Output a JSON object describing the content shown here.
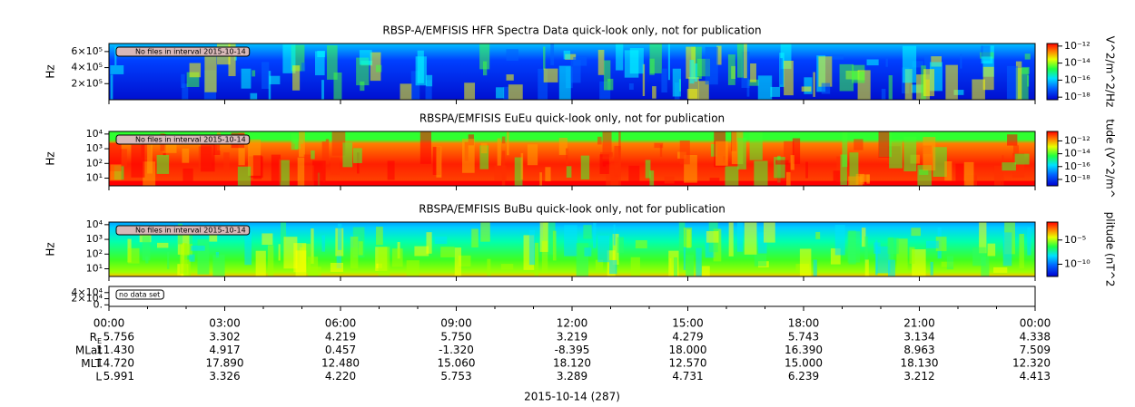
{
  "chart_data": [
    {
      "type": "spectrogram",
      "title": "RBSP-A/EMFISIS  HFR Spectra Data quick-look only, not for publication",
      "ylabel": "Hz",
      "ylim": [
        0,
        700000
      ],
      "yticks": [
        {
          "value": 600000,
          "label": "6×10⁵"
        },
        {
          "value": 400000,
          "label": "4×10⁵"
        },
        {
          "value": 200000,
          "label": "2×10⁵"
        }
      ],
      "annotation": "No files in interval 2015-10-14",
      "colorbar": {
        "label": "V^2/m^2/Hz",
        "clim": [
          5e-19,
          2e-12
        ],
        "log": true,
        "ticks": [
          {
            "value": 1e-12,
            "label": "10⁻¹²"
          },
          {
            "value": 1e-14,
            "label": "10⁻¹⁴"
          },
          {
            "value": 1e-16,
            "label": "10⁻¹⁶"
          },
          {
            "value": 1e-18,
            "label": "10⁻¹⁸"
          }
        ]
      }
    },
    {
      "type": "spectrogram",
      "title": "RBSPA/EMFISIS  EuEu quick-look only, not for publication",
      "ylabel": "Hz",
      "ylim": [
        3,
        15000
      ],
      "log_y": true,
      "yticks": [
        {
          "value": 10000,
          "label": "10⁴"
        },
        {
          "value": 1000,
          "label": "10³"
        },
        {
          "value": 100,
          "label": "10²"
        },
        {
          "value": 10,
          "label": "10¹"
        }
      ],
      "annotation": "No files in interval 2015-10-14",
      "colorbar": {
        "label": "tude (V^2/m^",
        "clim": [
          1e-19,
          3e-11
        ],
        "log": true,
        "ticks": [
          {
            "value": 1e-12,
            "label": "10⁻¹²"
          },
          {
            "value": 1e-14,
            "label": "10⁻¹⁴"
          },
          {
            "value": 1e-16,
            "label": "10⁻¹⁶"
          },
          {
            "value": 1e-18,
            "label": "10⁻¹⁸"
          }
        ]
      }
    },
    {
      "type": "spectrogram",
      "title": "RBSPA/EMFISIS  BuBu quick-look only, not for publication",
      "ylabel": "Hz",
      "ylim": [
        3,
        15000
      ],
      "log_y": true,
      "yticks": [
        {
          "value": 10000,
          "label": "10⁴"
        },
        {
          "value": 1000,
          "label": "10³"
        },
        {
          "value": 100,
          "label": "10²"
        },
        {
          "value": 10,
          "label": "10¹"
        }
      ],
      "annotation": "No files in interval 2015-10-14",
      "colorbar": {
        "label": "plitude (nT^2",
        "clim": [
          3e-13,
          0.05
        ],
        "log": true,
        "ticks": [
          {
            "value": 1e-05,
            "label": "10⁻⁵"
          },
          {
            "value": 1e-10,
            "label": "10⁻¹⁰"
          }
        ]
      }
    },
    {
      "type": "empty",
      "ylim": [
        -5000,
        60000
      ],
      "yticks": [
        {
          "value": 40000,
          "label": "4×10⁴"
        },
        {
          "value": 20000,
          "label": "2×10⁴"
        },
        {
          "value": 0,
          "label": "0."
        }
      ],
      "annotation": "no data set"
    }
  ],
  "time_axis": {
    "xlim": [
      0,
      24
    ],
    "ticks": [
      {
        "value": 0,
        "label": "00:00"
      },
      {
        "value": 3,
        "label": "03:00"
      },
      {
        "value": 6,
        "label": "06:00"
      },
      {
        "value": 9,
        "label": "09:00"
      },
      {
        "value": 12,
        "label": "12:00"
      },
      {
        "value": 15,
        "label": "15:00"
      },
      {
        "value": 18,
        "label": "18:00"
      },
      {
        "value": 21,
        "label": "21:00"
      },
      {
        "value": 24,
        "label": "00:00"
      }
    ],
    "label": "2015-10-14 (287)"
  },
  "ephemeris": [
    {
      "label": "R",
      "label_sub": "E",
      "values": [
        "5.756",
        "3.302",
        "4.219",
        "5.750",
        "3.219",
        "4.279",
        "5.743",
        "3.134",
        "4.338"
      ]
    },
    {
      "label": "MLat",
      "values": [
        "11.430",
        "4.917",
        "0.457",
        "-1.320",
        "-8.395",
        "18.000",
        "16.390",
        "8.963",
        "7.509"
      ]
    },
    {
      "label": "MLT",
      "values": [
        "14.720",
        "17.890",
        "12.480",
        "15.060",
        "18.120",
        "12.570",
        "15.000",
        "18.130",
        "12.320"
      ]
    },
    {
      "label": "L",
      "values": [
        "5.991",
        "3.326",
        "4.220",
        "5.753",
        "3.289",
        "4.731",
        "6.239",
        "3.212",
        "4.413"
      ]
    }
  ]
}
